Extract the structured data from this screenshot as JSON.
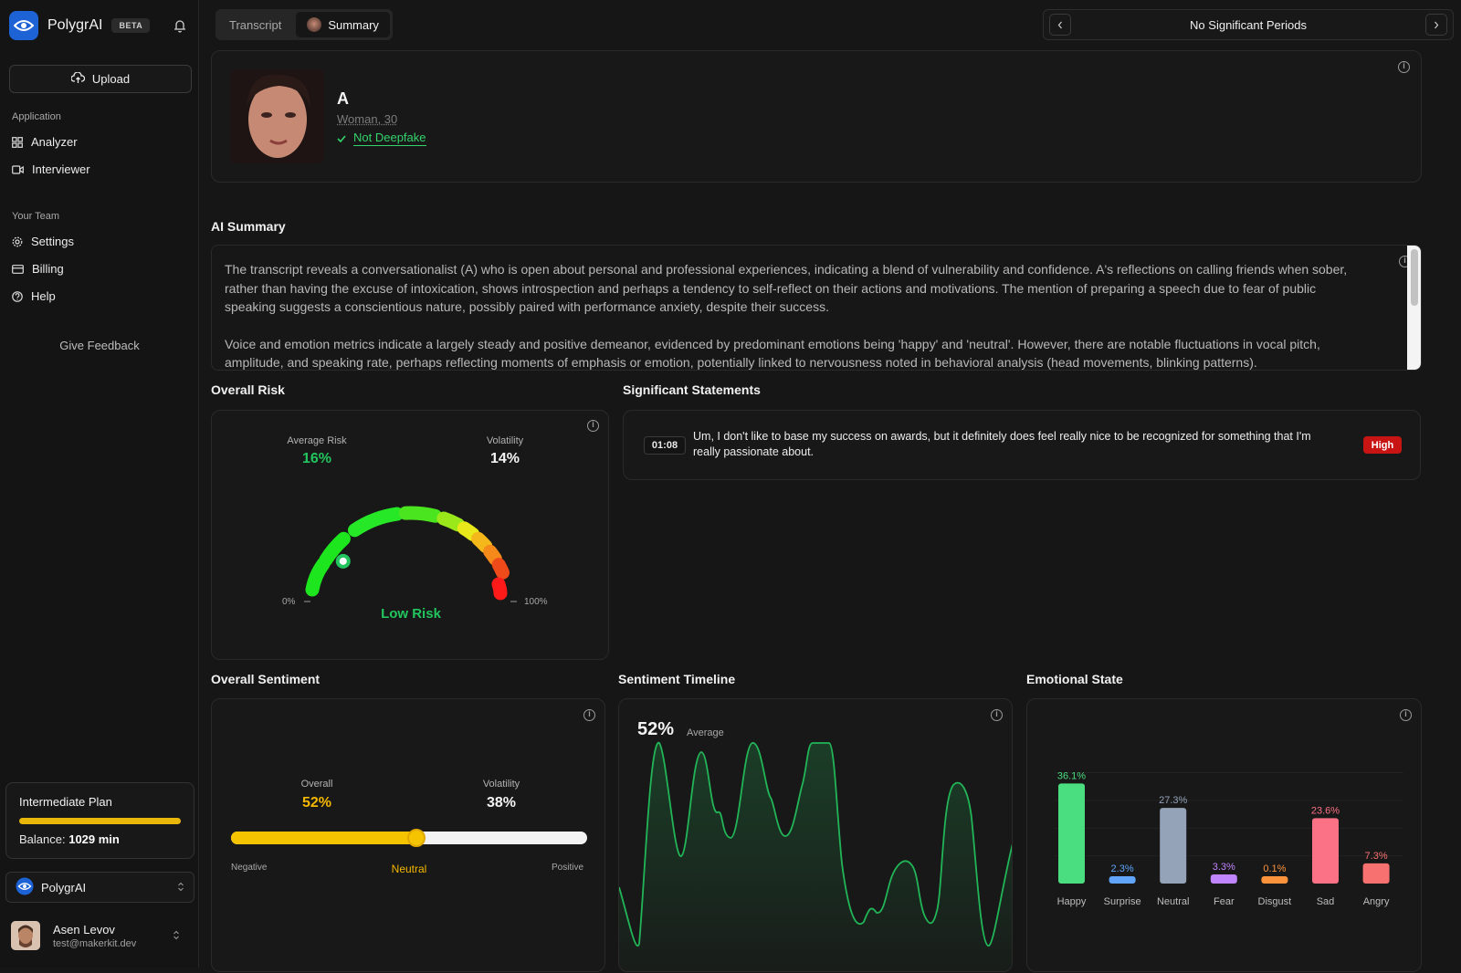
{
  "sidebar": {
    "brand": "PolygrAI",
    "beta": "BETA",
    "upload": "Upload",
    "sections": {
      "application": "Application",
      "team": "Your Team"
    },
    "items": [
      {
        "label": "Analyzer",
        "icon": "grid-icon"
      },
      {
        "label": "Interviewer",
        "icon": "video-icon"
      },
      {
        "label": "Settings",
        "icon": "gear-icon"
      },
      {
        "label": "Billing",
        "icon": "card-icon"
      },
      {
        "label": "Help",
        "icon": "help-icon"
      }
    ],
    "feedback": "Give Feedback",
    "plan": {
      "title": "Intermediate Plan",
      "balance_label": "Balance:",
      "balance_value": "1029 min",
      "usage_fraction": 1.0
    },
    "org": "PolygrAI",
    "user": {
      "name": "Asen Levov",
      "email": "test@makerkit.dev"
    }
  },
  "header": {
    "tabs": [
      {
        "label": "Transcript",
        "active": false
      },
      {
        "label": "Summary",
        "active": true
      }
    ],
    "periods": "No Significant Periods"
  },
  "profile": {
    "name": "A",
    "subtitle": "Woman, 30",
    "deepfake": "Not Deepfake"
  },
  "summary": {
    "title": "AI Summary",
    "paragraphs": [
      "The transcript reveals a conversationalist (A) who is open about personal and professional experiences, indicating a blend of vulnerability and confidence. A's reflections on calling friends when sober, rather than having the excuse of intoxication, shows introspection and perhaps a tendency to self-reflect on their actions and motivations. The mention of preparing a speech due to fear of public speaking suggests a conscientious nature, possibly paired with performance anxiety, despite their success.",
      "Voice and emotion metrics indicate a largely steady and positive demeanor, evidenced by predominant emotions being 'happy' and 'neutral'. However, there are notable fluctuations in vocal pitch, amplitude, and speaking rate, perhaps reflecting moments of emphasis or emotion, potentially linked to nervousness noted in behavioral analysis (head movements, blinking patterns)."
    ]
  },
  "risk": {
    "title": "Overall Risk",
    "avg_label": "Average Risk",
    "avg_value": "16%",
    "avg_fraction": 0.16,
    "vol_label": "Volatility",
    "vol_value": "14%",
    "min_label": "0%",
    "max_label": "100%",
    "status": "Low Risk",
    "colors": {
      "green": "#22c55e",
      "white": "#ffffff"
    }
  },
  "statements": {
    "title": "Significant Statements",
    "items": [
      {
        "time": "01:08",
        "text": "Um, I don't like to base my success on awards, but it definitely does feel really nice to be recognized for something that I'm really passionate about.",
        "level": "High"
      }
    ]
  },
  "sentiment": {
    "title": "Overall Sentiment",
    "overall_label": "Overall",
    "overall_value": "52%",
    "overall_fraction": 0.52,
    "vol_label": "Volatility",
    "vol_value": "38%",
    "neg": "Negative",
    "neu": "Neutral",
    "pos": "Positive",
    "accent": "#f5b800"
  },
  "timeline": {
    "title": "Sentiment Timeline",
    "avg_value": "52%",
    "avg_label": "Average"
  },
  "chart_data": {
    "type": "bar",
    "title": "Emotional State",
    "categories": [
      "Happy",
      "Surprise",
      "Neutral",
      "Fear",
      "Disgust",
      "Sad",
      "Angry"
    ],
    "values": [
      36.1,
      2.3,
      27.3,
      3.3,
      0.1,
      23.6,
      7.3
    ],
    "labels": [
      "36.1%",
      "2.3%",
      "27.3%",
      "3.3%",
      "0.1%",
      "23.6%",
      "7.3%"
    ],
    "colors": [
      "#4ade80",
      "#60a5fa",
      "#94a3b8",
      "#c084fc",
      "#fb923c",
      "#fb7185",
      "#f87171"
    ],
    "ylim": [
      0,
      40
    ],
    "grid": true
  }
}
